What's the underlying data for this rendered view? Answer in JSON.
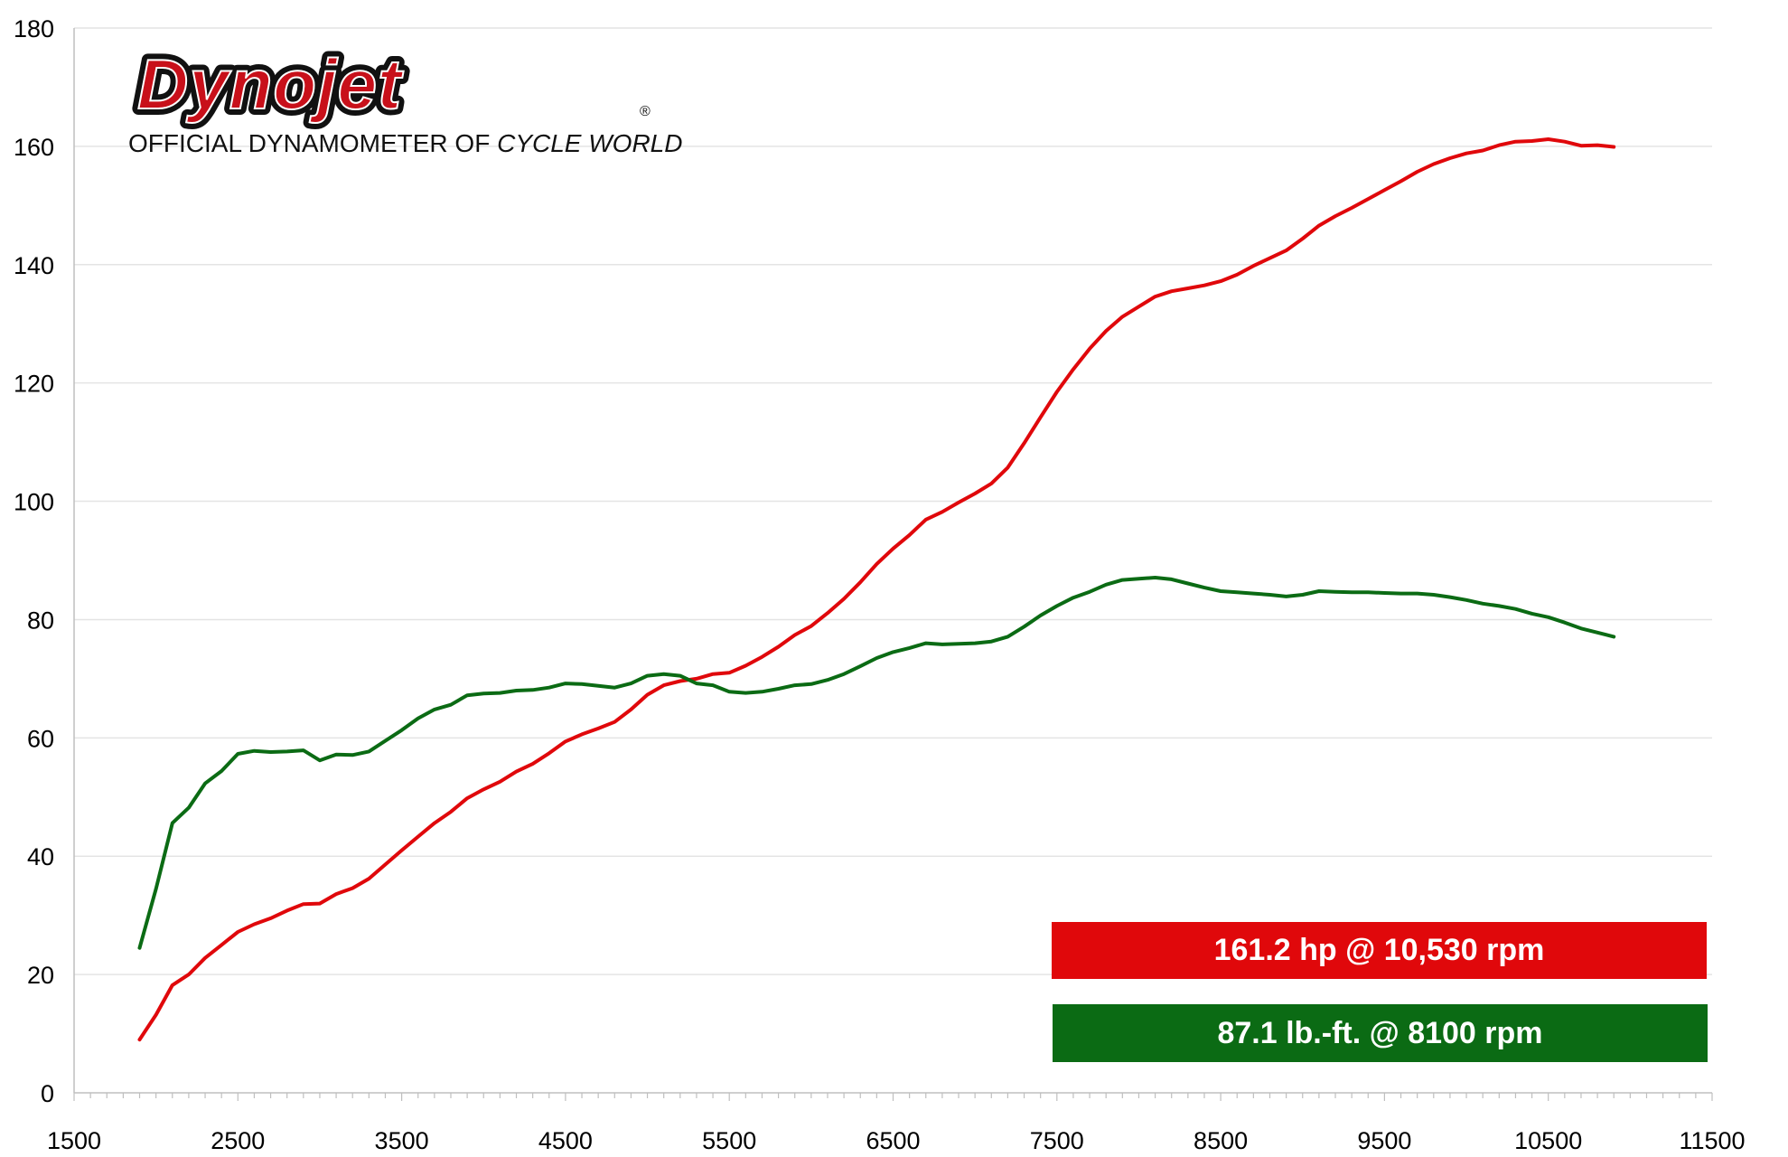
{
  "logo": {
    "brand": "Dynojet",
    "registered": "®",
    "tagline_prefix": "OFFICIAL DYNAMOMETER OF ",
    "tagline_emphasis": "CYCLE WORLD"
  },
  "colors": {
    "horsepower": "#e0080b",
    "torque": "#0b6b14",
    "grid": "#e4e4e4",
    "axis": "#bfbfbf"
  },
  "badges": {
    "hp_text": "161.2 hp @ 10,530 rpm",
    "torque_text": "87.1 lb.-ft. @ 8100 rpm"
  },
  "chart_data": {
    "type": "line",
    "title": "",
    "xlabel": "",
    "ylabel": "",
    "xlim": [
      1500,
      11500
    ],
    "ylim": [
      0,
      180
    ],
    "x_ticks": [
      1500,
      2500,
      3500,
      4500,
      5500,
      6500,
      7500,
      8500,
      9500,
      10500,
      11500
    ],
    "y_ticks": [
      0,
      20,
      40,
      60,
      80,
      100,
      120,
      140,
      160,
      180
    ],
    "grid": "horizontal",
    "legend": "none",
    "series": [
      {
        "key": "horsepower",
        "color": "#e0080b",
        "points": [
          [
            1900,
            9
          ],
          [
            2000,
            13.2
          ],
          [
            2100,
            18.2
          ],
          [
            2200,
            20
          ],
          [
            2300,
            22.8
          ],
          [
            2400,
            25
          ],
          [
            2500,
            27.2
          ],
          [
            2600,
            28.5
          ],
          [
            2700,
            29.5
          ],
          [
            2800,
            30.8
          ],
          [
            2900,
            31.9
          ],
          [
            3000,
            32
          ],
          [
            3100,
            33.6
          ],
          [
            3200,
            34.6
          ],
          [
            3300,
            36.2
          ],
          [
            3400,
            38.6
          ],
          [
            3500,
            41
          ],
          [
            3600,
            43.3
          ],
          [
            3700,
            45.6
          ],
          [
            3800,
            47.5
          ],
          [
            3900,
            49.8
          ],
          [
            4000,
            51.3
          ],
          [
            4100,
            52.6
          ],
          [
            4200,
            54.3
          ],
          [
            4300,
            55.6
          ],
          [
            4400,
            57.4
          ],
          [
            4500,
            59.4
          ],
          [
            4600,
            60.6
          ],
          [
            4700,
            61.6
          ],
          [
            4800,
            62.7
          ],
          [
            4900,
            64.8
          ],
          [
            5000,
            67.3
          ],
          [
            5100,
            68.9
          ],
          [
            5200,
            69.6
          ],
          [
            5300,
            70
          ],
          [
            5400,
            70.8
          ],
          [
            5500,
            71
          ],
          [
            5600,
            72.2
          ],
          [
            5700,
            73.7
          ],
          [
            5800,
            75.4
          ],
          [
            5900,
            77.4
          ],
          [
            6000,
            78.9
          ],
          [
            6100,
            81.1
          ],
          [
            6200,
            83.5
          ],
          [
            6300,
            86.3
          ],
          [
            6400,
            89.4
          ],
          [
            6500,
            92
          ],
          [
            6600,
            94.3
          ],
          [
            6700,
            96.9
          ],
          [
            6800,
            98.2
          ],
          [
            6900,
            99.8
          ],
          [
            7000,
            101.3
          ],
          [
            7100,
            103
          ],
          [
            7200,
            105.7
          ],
          [
            7300,
            109.8
          ],
          [
            7400,
            114.2
          ],
          [
            7500,
            118.5
          ],
          [
            7600,
            122.3
          ],
          [
            7700,
            125.8
          ],
          [
            7800,
            128.8
          ],
          [
            7900,
            131.2
          ],
          [
            8000,
            132.9
          ],
          [
            8100,
            134.6
          ],
          [
            8200,
            135.5
          ],
          [
            8300,
            136
          ],
          [
            8400,
            136.5
          ],
          [
            8500,
            137.2
          ],
          [
            8600,
            138.3
          ],
          [
            8700,
            139.8
          ],
          [
            8800,
            141.1
          ],
          [
            8900,
            142.4
          ],
          [
            9000,
            144.4
          ],
          [
            9100,
            146.6
          ],
          [
            9200,
            148.2
          ],
          [
            9300,
            149.6
          ],
          [
            9400,
            151.1
          ],
          [
            9500,
            152.6
          ],
          [
            9600,
            154.1
          ],
          [
            9700,
            155.7
          ],
          [
            9800,
            157
          ],
          [
            9900,
            158
          ],
          [
            10000,
            158.8
          ],
          [
            10100,
            159.3
          ],
          [
            10200,
            160.2
          ],
          [
            10300,
            160.8
          ],
          [
            10400,
            160.9
          ],
          [
            10500,
            161.2
          ],
          [
            10600,
            160.8
          ],
          [
            10700,
            160.1
          ],
          [
            10800,
            160.2
          ],
          [
            10900,
            159.9
          ]
        ]
      },
      {
        "key": "torque",
        "color": "#0b6b14",
        "points": [
          [
            1900,
            24.5
          ],
          [
            2000,
            34.5
          ],
          [
            2100,
            45.6
          ],
          [
            2200,
            48.2
          ],
          [
            2300,
            52.3
          ],
          [
            2400,
            54.4
          ],
          [
            2500,
            57.3
          ],
          [
            2600,
            57.8
          ],
          [
            2700,
            57.6
          ],
          [
            2800,
            57.7
          ],
          [
            2900,
            57.9
          ],
          [
            3000,
            56.2
          ],
          [
            3100,
            57.2
          ],
          [
            3200,
            57.1
          ],
          [
            3300,
            57.7
          ],
          [
            3400,
            59.5
          ],
          [
            3500,
            61.3
          ],
          [
            3600,
            63.3
          ],
          [
            3700,
            64.8
          ],
          [
            3800,
            65.6
          ],
          [
            3900,
            67.2
          ],
          [
            4000,
            67.5
          ],
          [
            4100,
            67.6
          ],
          [
            4200,
            68
          ],
          [
            4300,
            68.1
          ],
          [
            4400,
            68.5
          ],
          [
            4500,
            69.2
          ],
          [
            4600,
            69.1
          ],
          [
            4700,
            68.8
          ],
          [
            4800,
            68.5
          ],
          [
            4900,
            69.2
          ],
          [
            5000,
            70.5
          ],
          [
            5100,
            70.8
          ],
          [
            5200,
            70.5
          ],
          [
            5300,
            69.2
          ],
          [
            5400,
            68.9
          ],
          [
            5500,
            67.8
          ],
          [
            5600,
            67.6
          ],
          [
            5700,
            67.8
          ],
          [
            5800,
            68.3
          ],
          [
            5900,
            68.9
          ],
          [
            6000,
            69.1
          ],
          [
            6100,
            69.8
          ],
          [
            6200,
            70.8
          ],
          [
            6300,
            72.1
          ],
          [
            6400,
            73.5
          ],
          [
            6500,
            74.5
          ],
          [
            6600,
            75.2
          ],
          [
            6700,
            76
          ],
          [
            6800,
            75.8
          ],
          [
            6900,
            75.9
          ],
          [
            7000,
            76
          ],
          [
            7100,
            76.3
          ],
          [
            7200,
            77.1
          ],
          [
            7300,
            78.8
          ],
          [
            7400,
            80.7
          ],
          [
            7500,
            82.3
          ],
          [
            7600,
            83.7
          ],
          [
            7700,
            84.7
          ],
          [
            7800,
            85.9
          ],
          [
            7900,
            86.7
          ],
          [
            8000,
            86.9
          ],
          [
            8100,
            87.1
          ],
          [
            8200,
            86.8
          ],
          [
            8300,
            86.1
          ],
          [
            8400,
            85.4
          ],
          [
            8500,
            84.8
          ],
          [
            8600,
            84.6
          ],
          [
            8700,
            84.4
          ],
          [
            8800,
            84.2
          ],
          [
            8900,
            83.9
          ],
          [
            9000,
            84.2
          ],
          [
            9100,
            84.8
          ],
          [
            9200,
            84.7
          ],
          [
            9300,
            84.6
          ],
          [
            9400,
            84.6
          ],
          [
            9500,
            84.5
          ],
          [
            9600,
            84.4
          ],
          [
            9700,
            84.4
          ],
          [
            9800,
            84.2
          ],
          [
            9900,
            83.8
          ],
          [
            10000,
            83.3
          ],
          [
            10100,
            82.7
          ],
          [
            10200,
            82.3
          ],
          [
            10300,
            81.8
          ],
          [
            10400,
            81
          ],
          [
            10500,
            80.4
          ],
          [
            10600,
            79.5
          ],
          [
            10700,
            78.5
          ],
          [
            10800,
            77.8
          ],
          [
            10900,
            77.1
          ]
        ]
      }
    ]
  }
}
